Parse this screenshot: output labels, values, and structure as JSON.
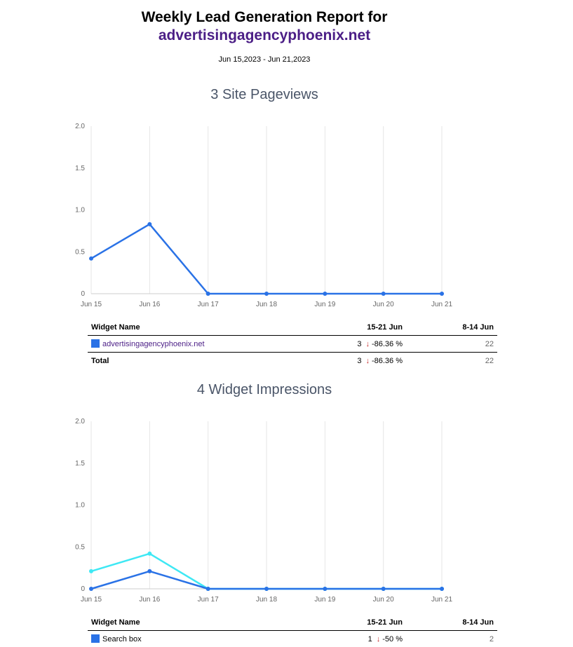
{
  "report": {
    "title": "Weekly Lead Generation Report for",
    "domain": "advertisingagencyphoenix.net",
    "date_range": "Jun 15,2023 - Jun 21,2023"
  },
  "sections": [
    {
      "title": "3 Site Pageviews",
      "table": {
        "headers": [
          "Widget Name",
          "15-21 Jun",
          "8-14 Jun"
        ],
        "rows": [
          {
            "name": "advertisingagencyphoenix.net",
            "current": "3",
            "arrow": "↓",
            "change": "-86.36 %",
            "previous": "22",
            "color": "#2a72e6"
          }
        ],
        "total": {
          "name": "Total",
          "current": "3",
          "arrow": "↓",
          "change": "-86.36 %",
          "previous": "22"
        }
      }
    },
    {
      "title": "4 Widget Impressions",
      "table": {
        "headers": [
          "Widget Name",
          "15-21 Jun",
          "8-14 Jun"
        ],
        "rows": [
          {
            "name": "Search box",
            "current": "1",
            "arrow": "↓",
            "change": "-50 %",
            "previous": "2",
            "color": "#2a72e6"
          }
        ]
      }
    }
  ],
  "chart_data": [
    {
      "type": "line",
      "title": "3 Site Pageviews",
      "x": [
        "Jun 15",
        "Jun 16",
        "Jun 17",
        "Jun 18",
        "Jun 19",
        "Jun 20",
        "Jun 21"
      ],
      "ylim": [
        0,
        2.0
      ],
      "yticks": [
        "2.0",
        "1.5",
        "1.0",
        "0.5",
        "0"
      ],
      "ytick_values": [
        2.0,
        1.5,
        1.0,
        0.5,
        0
      ],
      "grid": "vertical",
      "series": [
        {
          "values": [
            0.42,
            0.83,
            0,
            0,
            0,
            0,
            0
          ],
          "color": "#2a72e6"
        }
      ]
    },
    {
      "type": "line",
      "title": "4 Widget Impressions",
      "x": [
        "Jun 15",
        "Jun 16",
        "Jun 17",
        "Jun 18",
        "Jun 19",
        "Jun 20",
        "Jun 21"
      ],
      "ylim": [
        0,
        2.0
      ],
      "yticks": [
        "2.0",
        "1.5",
        "1.0",
        "0.5",
        "0"
      ],
      "ytick_values": [
        2.0,
        1.5,
        1.0,
        0.5,
        0
      ],
      "grid": "vertical",
      "series": [
        {
          "values": [
            0.21,
            0.42,
            0,
            0,
            0,
            0,
            0
          ],
          "color": "#3ee8f4"
        },
        {
          "values": [
            0,
            0.21,
            0,
            0,
            0,
            0,
            0
          ],
          "color": "#2a72e6"
        }
      ]
    }
  ]
}
